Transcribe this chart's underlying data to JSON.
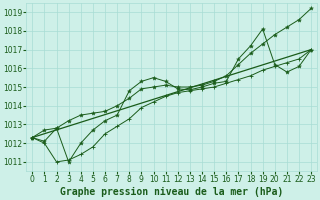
{
  "title": "Graphe pression niveau de la mer (hPa)",
  "bg_color": "#cef0e8",
  "grid_color": "#a8ddd4",
  "line_color": "#1a5c1a",
  "x_ticks": [
    0,
    1,
    2,
    3,
    4,
    5,
    6,
    7,
    8,
    9,
    10,
    11,
    12,
    13,
    14,
    15,
    16,
    17,
    18,
    19,
    20,
    21,
    22,
    23
  ],
  "y_ticks": [
    1011,
    1012,
    1013,
    1014,
    1015,
    1016,
    1017,
    1018,
    1019
  ],
  "ylim": [
    1010.5,
    1019.5
  ],
  "xlim": [
    -0.5,
    23.5
  ],
  "series_main": [
    1012.3,
    1012.1,
    1012.8,
    1011.0,
    1012.0,
    1012.7,
    1013.2,
    1013.5,
    1014.8,
    1015.3,
    1015.5,
    1015.3,
    1014.9,
    1014.85,
    1015.0,
    1015.2,
    1015.3,
    1016.5,
    1017.2,
    1018.1,
    1016.2,
    1015.8,
    1016.1,
    1017.0
  ],
  "series_low": [
    1012.3,
    1012.0,
    1011.0,
    1011.1,
    1011.4,
    1011.8,
    1012.5,
    1012.9,
    1013.3,
    1013.9,
    1014.2,
    1014.5,
    1014.7,
    1014.8,
    1014.9,
    1015.0,
    1015.2,
    1015.4,
    1015.6,
    1015.9,
    1016.1,
    1016.3,
    1016.5,
    1017.0
  ],
  "series_upper": [
    1012.3,
    1012.7,
    1012.8,
    1013.2,
    1013.5,
    1013.6,
    1013.7,
    1014.0,
    1014.4,
    1014.9,
    1015.0,
    1015.1,
    1015.0,
    1015.0,
    1015.1,
    1015.3,
    1015.6,
    1016.2,
    1016.8,
    1017.3,
    1017.8,
    1018.2,
    1018.6,
    1019.2
  ],
  "trend_x": [
    0,
    23
  ],
  "trend_y": [
    1012.3,
    1017.0
  ],
  "tick_fontsize": 5.5,
  "title_fontsize": 7.0
}
